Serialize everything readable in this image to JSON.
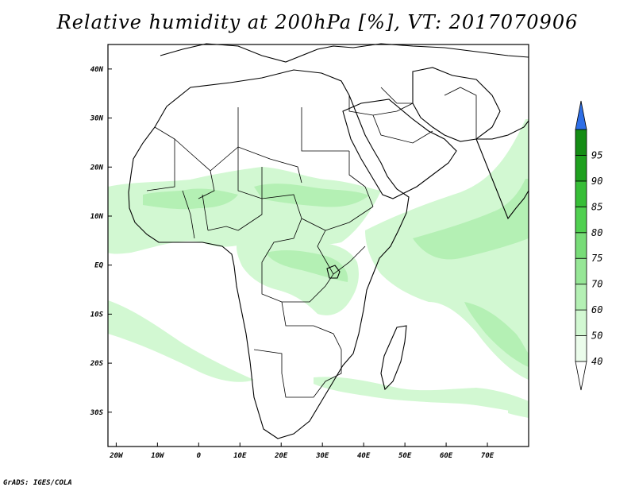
{
  "title": "Relative humidity at 200hPa [%], VT: 2017070906",
  "credit": "GrADS: IGES/COLA",
  "map": {
    "lon_range": [
      -22,
      80
    ],
    "lat_range": [
      -37,
      45
    ],
    "lon_ticks": [
      {
        "value": -20,
        "label": "20W"
      },
      {
        "value": -10,
        "label": "10W"
      },
      {
        "value": 0,
        "label": "0"
      },
      {
        "value": 10,
        "label": "10E"
      },
      {
        "value": 20,
        "label": "20E"
      },
      {
        "value": 30,
        "label": "30E"
      },
      {
        "value": 40,
        "label": "40E"
      },
      {
        "value": 50,
        "label": "50E"
      },
      {
        "value": 60,
        "label": "60E"
      },
      {
        "value": 70,
        "label": "70E"
      }
    ],
    "lat_ticks": [
      {
        "value": 40,
        "label": "40N"
      },
      {
        "value": 30,
        "label": "30N"
      },
      {
        "value": 20,
        "label": "20N"
      },
      {
        "value": 10,
        "label": "10N"
      },
      {
        "value": 0,
        "label": "EQ"
      },
      {
        "value": -10,
        "label": "10S"
      },
      {
        "value": -20,
        "label": "20S"
      },
      {
        "value": -30,
        "label": "30S"
      }
    ]
  },
  "colorbar": {
    "levels": [
      "40",
      "50",
      "60",
      "70",
      "75",
      "80",
      "85",
      "90",
      "95"
    ],
    "colors": [
      "#ebfceb",
      "#d2f8d2",
      "#b4f0b4",
      "#96e696",
      "#78dc78",
      "#50d050",
      "#37be37",
      "#1ea01e",
      "#148c14"
    ],
    "over_color": "#2e6ee6",
    "under_color": "#ffffff"
  },
  "field_colors": {
    "light": "#d2f8d2",
    "medium": "#b4f0b4"
  },
  "coast_color": "#000000"
}
